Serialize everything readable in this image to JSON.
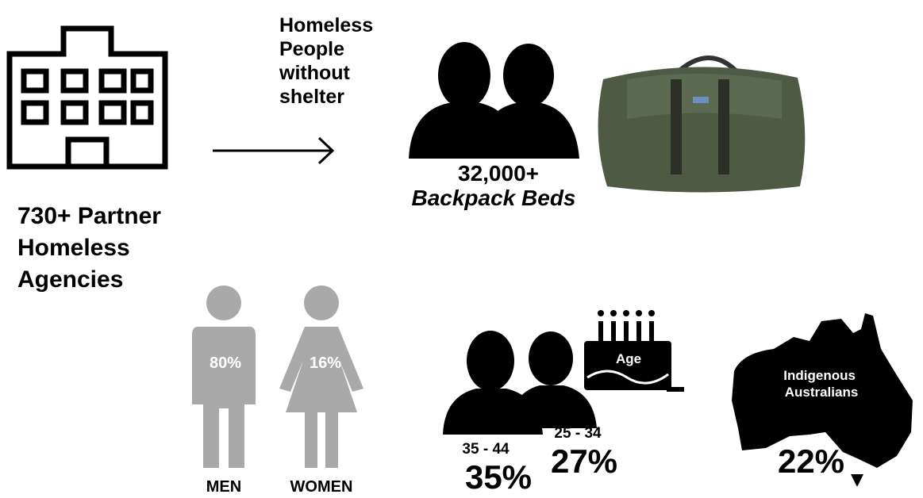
{
  "flow": {
    "source": {
      "lines": [
        "730+ Partner",
        "Homeless",
        "Agencies"
      ]
    },
    "recipients": {
      "lines": [
        "Homeless",
        "People",
        "without",
        "shelter"
      ]
    },
    "count": "32,000+",
    "item": "Backpack Beds"
  },
  "gender": {
    "men": {
      "label": "MEN",
      "share": "80%"
    },
    "women": {
      "label": "WOMEN",
      "share": "16%"
    }
  },
  "age": {
    "icon_label": "Age",
    "groups": [
      {
        "range": "35 - 44",
        "share": "35%"
      },
      {
        "range": "25 - 34",
        "share": "27%"
      }
    ]
  },
  "indigenous": {
    "lines": [
      "Indigenous",
      "Australians"
    ],
    "share": "22%"
  }
}
